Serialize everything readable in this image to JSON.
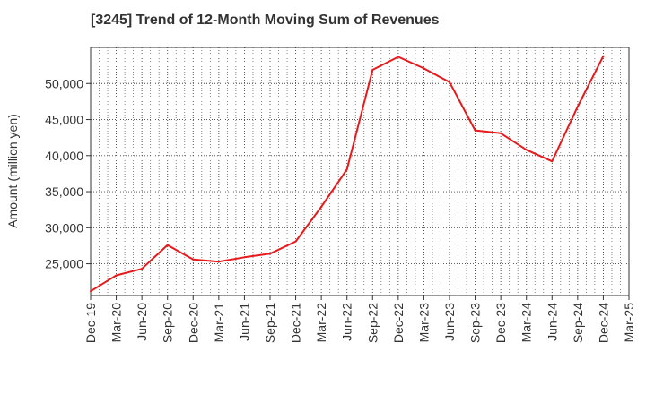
{
  "chart_data": {
    "type": "line",
    "title": "[3245]  Trend of 12-Month Moving Sum of Revenues",
    "xlabel": "",
    "ylabel": "Amount (million yen)",
    "categories": [
      "Dec-19",
      "Mar-20",
      "Jun-20",
      "Sep-20",
      "Dec-20",
      "Mar-21",
      "Jun-21",
      "Sep-21",
      "Dec-21",
      "Mar-22",
      "Jun-22",
      "Sep-22",
      "Dec-22",
      "Mar-23",
      "Jun-23",
      "Sep-23",
      "Dec-23",
      "Mar-24",
      "Jun-24",
      "Sep-24",
      "Dec-24",
      "Mar-25"
    ],
    "yticks": [
      25000,
      30000,
      35000,
      40000,
      45000,
      50000
    ],
    "ytick_labels": [
      "25,000",
      "30,000",
      "35,000",
      "40,000",
      "45,000",
      "50,000"
    ],
    "ylim": [
      20600,
      55000
    ],
    "grid": true,
    "series": [
      {
        "color": "#e8191b",
        "values": [
          21200,
          23400,
          24300,
          27600,
          25600,
          25300,
          25900,
          26400,
          28100,
          32900,
          38100,
          51900,
          53700,
          52100,
          50200,
          43500,
          43100,
          40800,
          39200,
          46800,
          53800,
          null
        ]
      }
    ]
  }
}
